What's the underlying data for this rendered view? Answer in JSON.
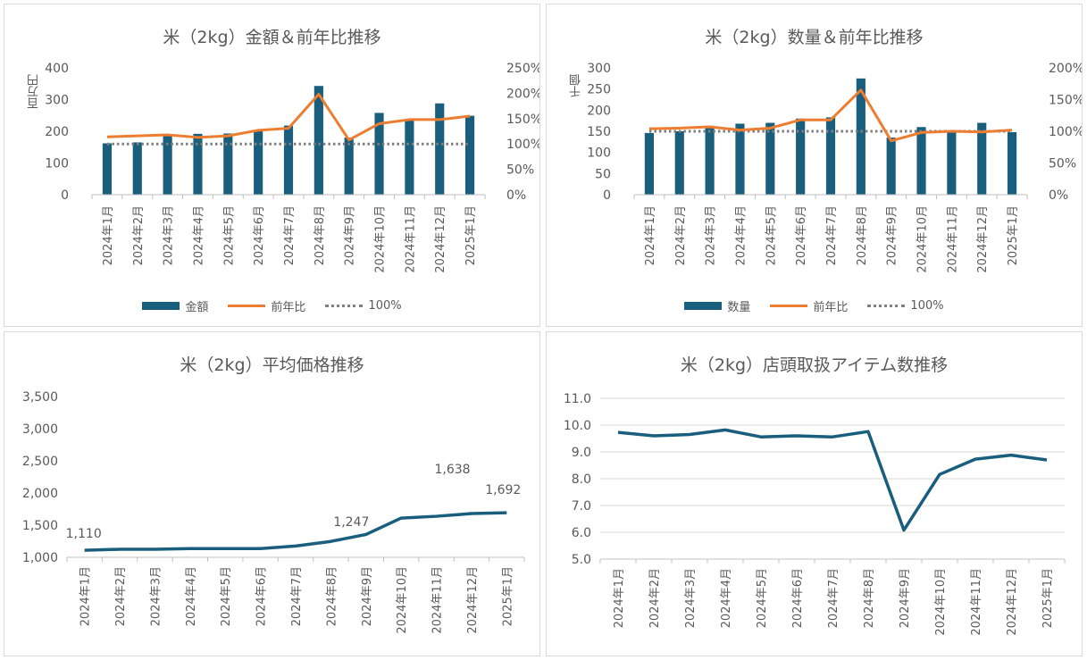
{
  "colors": {
    "bar": "#1a5e7d",
    "line": "#ed7d31",
    "ref": "#7f7f7f",
    "grid": "#d9d9d9",
    "axis": "#bfbfbf",
    "text": "#595959"
  },
  "chart_data": [
    {
      "type": "bar",
      "title": "米（2kg）金額＆前年比推移",
      "ylabel": "百万円",
      "categories": [
        "2024年1月",
        "2024年2月",
        "2024年3月",
        "2024年4月",
        "2024年5月",
        "2024年6月",
        "2024年7月",
        "2024年8月",
        "2024年9月",
        "2024年10月",
        "2024年11月",
        "2024年12月",
        "2025年1月"
      ],
      "ylim": [
        0,
        400
      ],
      "y_ticks": [
        "0",
        "100",
        "200",
        "300",
        "400"
      ],
      "y2lim": [
        0,
        2.5
      ],
      "y2_ticks": [
        "0%",
        "50%",
        "100%",
        "150%",
        "200%",
        "250%"
      ],
      "series": [
        {
          "name": "金額",
          "kind": "bar",
          "axis": "left",
          "values": [
            162,
            165,
            185,
            192,
            193,
            203,
            218,
            343,
            180,
            258,
            238,
            288,
            249
          ]
        },
        {
          "name": "前年比",
          "kind": "line",
          "axis": "right",
          "values": [
            1.14,
            1.16,
            1.18,
            1.13,
            1.16,
            1.27,
            1.31,
            1.98,
            1.08,
            1.4,
            1.48,
            1.48,
            1.55
          ]
        },
        {
          "name": "100%",
          "kind": "dotted",
          "axis": "right",
          "values": [
            1,
            1,
            1,
            1,
            1,
            1,
            1,
            1,
            1,
            1,
            1,
            1,
            1
          ]
        }
      ],
      "legend": [
        "金額",
        "前年比",
        "100%"
      ]
    },
    {
      "type": "bar",
      "title": "米（2kg）数量＆前年比推移",
      "ylabel": "千個",
      "categories": [
        "2024年1月",
        "2024年2月",
        "2024年3月",
        "2024年4月",
        "2024年5月",
        "2024年6月",
        "2024年7月",
        "2024年8月",
        "2024年9月",
        "2024年10月",
        "2024年11月",
        "2024年12月",
        "2025年1月"
      ],
      "ylim": [
        0,
        300
      ],
      "y_ticks": [
        "0",
        "50",
        "100",
        "150",
        "200",
        "250",
        "300"
      ],
      "y2lim": [
        0,
        2.0
      ],
      "y2_ticks": [
        "0%",
        "50%",
        "100%",
        "150%",
        "200%"
      ],
      "series": [
        {
          "name": "数量",
          "kind": "bar",
          "axis": "left",
          "values": [
            146,
            150,
            163,
            168,
            170,
            180,
            183,
            275,
            135,
            160,
            150,
            170,
            148
          ]
        },
        {
          "name": "前年比",
          "kind": "line",
          "axis": "right",
          "values": [
            1.04,
            1.05,
            1.07,
            1.02,
            1.05,
            1.18,
            1.18,
            1.65,
            0.85,
            0.98,
            1.0,
            0.99,
            1.02
          ]
        },
        {
          "name": "100%",
          "kind": "dotted",
          "axis": "right",
          "values": [
            1,
            1,
            1,
            1,
            1,
            1,
            1,
            1,
            1,
            1,
            1,
            1,
            1
          ]
        }
      ],
      "legend": [
        "数量",
        "前年比",
        "100%"
      ]
    },
    {
      "type": "line",
      "title": "米（2kg）平均価格推移",
      "categories": [
        "2024年1月",
        "2024年2月",
        "2024年3月",
        "2024年4月",
        "2024年5月",
        "2024年6月",
        "2024年7月",
        "2024年8月",
        "2024年9月",
        "2024年10月",
        "2024年11月",
        "2024年12月",
        "2025年1月"
      ],
      "ylim": [
        1000,
        3500
      ],
      "y_ticks": [
        "1,000",
        "1,500",
        "2,000",
        "2,500",
        "3,000",
        "3,500"
      ],
      "series": [
        {
          "name": "平均価格",
          "values": [
            1110,
            1125,
            1125,
            1135,
            1135,
            1135,
            1175,
            1247,
            1355,
            1610,
            1638,
            1680,
            1692
          ]
        }
      ],
      "data_labels": [
        {
          "index": 0,
          "text": "1,110"
        },
        {
          "index": 7,
          "text": "1,247"
        },
        {
          "index": 10,
          "text": "1,638"
        },
        {
          "index": 12,
          "text": "1,692"
        }
      ]
    },
    {
      "type": "line",
      "title": "米（2kg）店頭取扱アイテム数推移",
      "categories": [
        "2024年1月",
        "2024年2月",
        "2024年3月",
        "2024年4月",
        "2024年5月",
        "2024年6月",
        "2024年7月",
        "2024年8月",
        "2024年9月",
        "2024年10月",
        "2024年11月",
        "2024年12月",
        "2025年1月"
      ],
      "ylim": [
        5.0,
        11.0
      ],
      "y_ticks": [
        "5.0",
        "6.0",
        "7.0",
        "8.0",
        "9.0",
        "10.0",
        "11.0"
      ],
      "series": [
        {
          "name": "アイテム数",
          "values": [
            9.73,
            9.6,
            9.65,
            9.82,
            9.56,
            9.6,
            9.56,
            9.76,
            6.08,
            8.16,
            8.73,
            8.88,
            8.7
          ]
        }
      ]
    }
  ]
}
